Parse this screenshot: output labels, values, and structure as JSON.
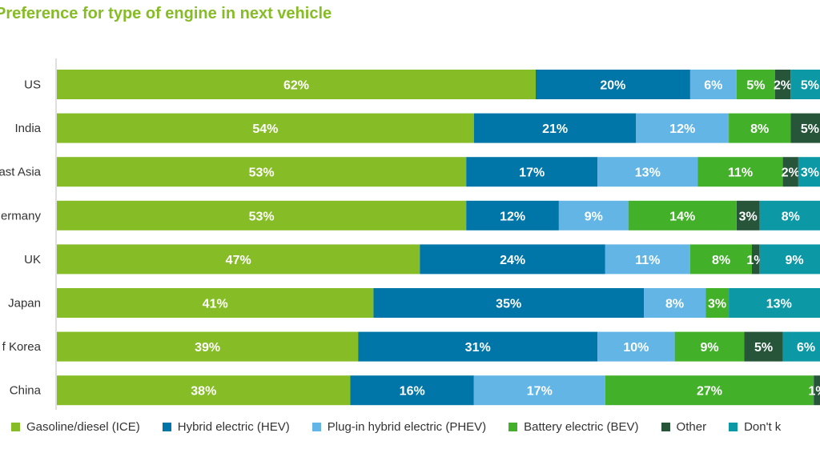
{
  "chart_data": {
    "type": "bar",
    "orientation": "horizontal",
    "stacked": true,
    "title": "Preference for type of engine in next vehicle",
    "categories": [
      "US",
      "India",
      "Southeast Asia",
      "Germany",
      "UK",
      "Japan",
      "Republic of Korea",
      "China"
    ],
    "category_labels_visible": [
      "US",
      "India",
      "ast Asia",
      "ermany",
      "UK",
      "Japan",
      "f Korea",
      "China"
    ],
    "unit": "%",
    "xlim": [
      0,
      100
    ],
    "grid": false,
    "legend_position": "bottom",
    "series": [
      {
        "name": "Gasoline/diesel (ICE)",
        "color": "#86bc25",
        "values": [
          62,
          54,
          53,
          53,
          47,
          41,
          39,
          38
        ]
      },
      {
        "name": "Hybrid electric (HEV)",
        "color": "#0076a8",
        "values": [
          20,
          21,
          17,
          12,
          24,
          35,
          31,
          16
        ]
      },
      {
        "name": "Plug-in hybrid electric (PHEV)",
        "color": "#62b5e5",
        "values": [
          6,
          12,
          13,
          9,
          11,
          8,
          10,
          17
        ]
      },
      {
        "name": "Battery electric (BEV)",
        "color": "#43b02a",
        "values": [
          5,
          8,
          11,
          14,
          8,
          3,
          9,
          27
        ]
      },
      {
        "name": "Other",
        "color": "#26553a",
        "values": [
          2,
          5,
          2,
          3,
          1,
          null,
          5,
          1
        ]
      },
      {
        "name": "Don't know",
        "color": "#0d98a6",
        "values": [
          5,
          null,
          3,
          8,
          9,
          13,
          6,
          null
        ]
      }
    ]
  },
  "legend": {
    "labels": [
      "Gasoline/diesel (ICE)",
      "Hybrid electric (HEV)",
      "Plug-in hybrid electric (PHEV)",
      "Battery electric (BEV)",
      "Other",
      "Don't k"
    ]
  }
}
